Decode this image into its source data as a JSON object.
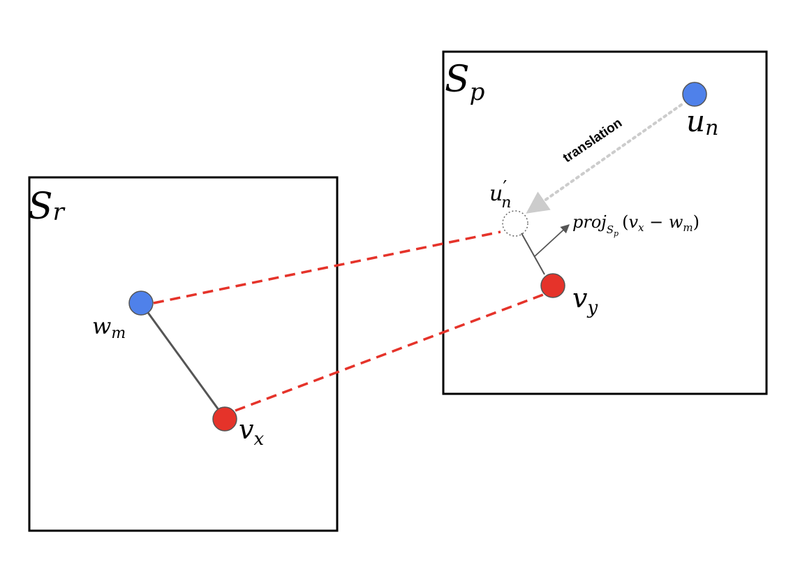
{
  "space_r": {
    "label": "S",
    "sub": "r"
  },
  "space_p": {
    "label": "S",
    "sub": "p"
  },
  "nodes": {
    "u_n": {
      "base": "u",
      "sub": "n"
    },
    "u_n_prime": {
      "base": "u",
      "prime": "′",
      "sub": "n"
    },
    "w_m": {
      "base": "w",
      "sub": "m"
    },
    "v_x": {
      "base": "v",
      "sub": "x"
    },
    "v_y": {
      "base": "v",
      "sub": "y"
    }
  },
  "translation_label": "translation",
  "projection_label": {
    "func": "proj",
    "func_sub": "S",
    "func_subsub": "p",
    "open": "(",
    "a": "v",
    "a_sub": "x",
    "minus": " − ",
    "b": "w",
    "b_sub": "m",
    "close": ")"
  },
  "colors": {
    "blue_node": "#4f81ea",
    "red_node": "#e5332a",
    "dashed_red": "#e5332a",
    "gray_line": "#555555",
    "translation_dots": "#cccccc",
    "box_stroke": "#000000"
  }
}
